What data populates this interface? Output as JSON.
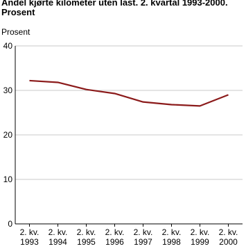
{
  "chart_data": {
    "type": "line",
    "title": "Andel kjørte kilometer uten last. 2. kvartal 1993-2000.\nProsent",
    "y_label": "Prosent",
    "categories": [
      "2. kv.\n1993",
      "2. kv.\n1994",
      "2. kv.\n1995",
      "2. kv.\n1996",
      "2. kv.\n1997",
      "2. kv.\n1998",
      "2. kv.\n1999",
      "2. kv.\n2000"
    ],
    "series": [
      {
        "color": "#8b1a1a",
        "values": [
          32.2,
          31.8,
          30.2,
          29.3,
          27.4,
          26.8,
          26.5,
          29.0
        ]
      }
    ],
    "ylim": [
      0,
      40
    ],
    "yticks": [
      0,
      10,
      20,
      30,
      40
    ],
    "grid": true
  }
}
